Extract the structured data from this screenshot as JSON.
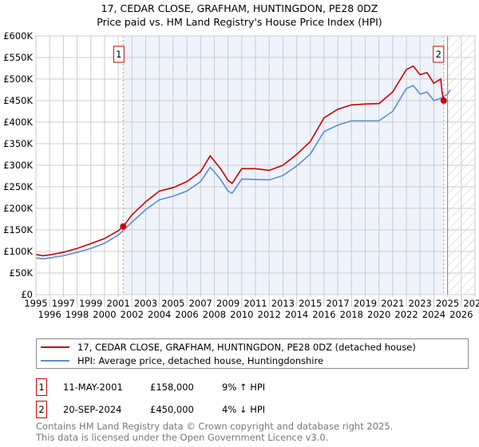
{
  "title": "17, CEDAR CLOSE, GRAFHAM, HUNTINGDON, PE28 0DZ",
  "subtitle": "Price paid vs. HM Land Registry's House Price Index (HPI)",
  "colors": {
    "property": "#cc0000",
    "hpi": "#5b8fd0",
    "shade": "#eef3fc"
  },
  "chart_data": {
    "type": "line",
    "xlim": [
      1995,
      2027
    ],
    "ylim": [
      0,
      600000
    ],
    "yticks": [
      0,
      50000,
      100000,
      150000,
      200000,
      250000,
      300000,
      350000,
      400000,
      450000,
      500000,
      550000,
      600000
    ],
    "ytick_labels": [
      "£0",
      "£50K",
      "£100K",
      "£150K",
      "£200K",
      "£250K",
      "£300K",
      "£350K",
      "£400K",
      "£450K",
      "£500K",
      "£550K",
      "£600K"
    ],
    "xticks": [
      "1995",
      "1996",
      "1997",
      "1998",
      "1999",
      "2000",
      "2001",
      "2002",
      "2003",
      "2004",
      "2005",
      "2006",
      "2007",
      "2008",
      "2009",
      "2010",
      "2011",
      "2012",
      "2013",
      "2014",
      "2015",
      "2016",
      "2017",
      "2018",
      "2019",
      "2020",
      "2021",
      "2022",
      "2023",
      "2024",
      "2025",
      "2026",
      "2027"
    ],
    "grid": true,
    "series": [
      {
        "name": "17, CEDAR CLOSE, GRAFHAM, HUNTINGDON, PE28 0DZ (detached house)",
        "x": [
          1995,
          1995.5,
          1996,
          1997,
          1998,
          1999,
          2000,
          2001,
          2001.36,
          2002,
          2003,
          2004,
          2005,
          2006,
          2007,
          2007.7,
          2008,
          2008.5,
          2009,
          2009.3,
          2010,
          2011,
          2012,
          2013,
          2014,
          2015,
          2016,
          2017,
          2018,
          2019,
          2020,
          2021,
          2022,
          2022.5,
          2023,
          2023.5,
          2024,
          2024.5,
          2024.6,
          2024.72
        ],
        "y": [
          93000,
          90000,
          92000,
          98000,
          107000,
          118000,
          130000,
          148000,
          158000,
          185000,
          215000,
          240000,
          248000,
          262000,
          285000,
          322000,
          310000,
          290000,
          265000,
          258000,
          292000,
          292000,
          288000,
          300000,
          325000,
          355000,
          410000,
          430000,
          440000,
          442000,
          443000,
          470000,
          522000,
          530000,
          510000,
          515000,
          490000,
          500000,
          470000,
          450000
        ]
      },
      {
        "name": "HPI: Average price, detached house, Huntingdonshire",
        "x": [
          1995,
          1995.5,
          1996,
          1997,
          1998,
          1999,
          2000,
          2001,
          2002,
          2003,
          2004,
          2005,
          2006,
          2007,
          2007.7,
          2008,
          2008.5,
          2009,
          2009.3,
          2010,
          2011,
          2012,
          2013,
          2014,
          2015,
          2016,
          2017,
          2018,
          2019,
          2020,
          2021,
          2022,
          2022.5,
          2023,
          2023.5,
          2024,
          2024.5,
          2025,
          2025.2
        ],
        "y": [
          85000,
          83000,
          85000,
          90000,
          98000,
          107000,
          119000,
          138000,
          168000,
          197000,
          220000,
          228000,
          240000,
          262000,
          295000,
          285000,
          265000,
          240000,
          235000,
          268000,
          267000,
          266000,
          276000,
          298000,
          326000,
          378000,
          393000,
          403000,
          403000,
          403000,
          425000,
          478000,
          485000,
          465000,
          470000,
          450000,
          455000,
          465000,
          475000
        ]
      }
    ],
    "annotations": [
      {
        "label": "1",
        "x": 2001.36,
        "y": 158000
      },
      {
        "label": "2",
        "x": 2024.72,
        "y": 450000
      }
    ],
    "legend": "bottom"
  },
  "legend": {
    "property": "17, CEDAR CLOSE, GRAFHAM, HUNTINGDON, PE28 0DZ (detached house)",
    "hpi": "HPI: Average price, detached house, Huntingdonshire"
  },
  "transactions": [
    {
      "num": "1",
      "date": "11-MAY-2001",
      "price": "£158,000",
      "hpi": "9% ↑ HPI"
    },
    {
      "num": "2",
      "date": "20-SEP-2024",
      "price": "£450,000",
      "hpi": "4% ↓ HPI"
    }
  ],
  "footer": {
    "line1": "Contains HM Land Registry data © Crown copyright and database right 2025.",
    "line2": "This data is licensed under the Open Government Licence v3.0."
  }
}
